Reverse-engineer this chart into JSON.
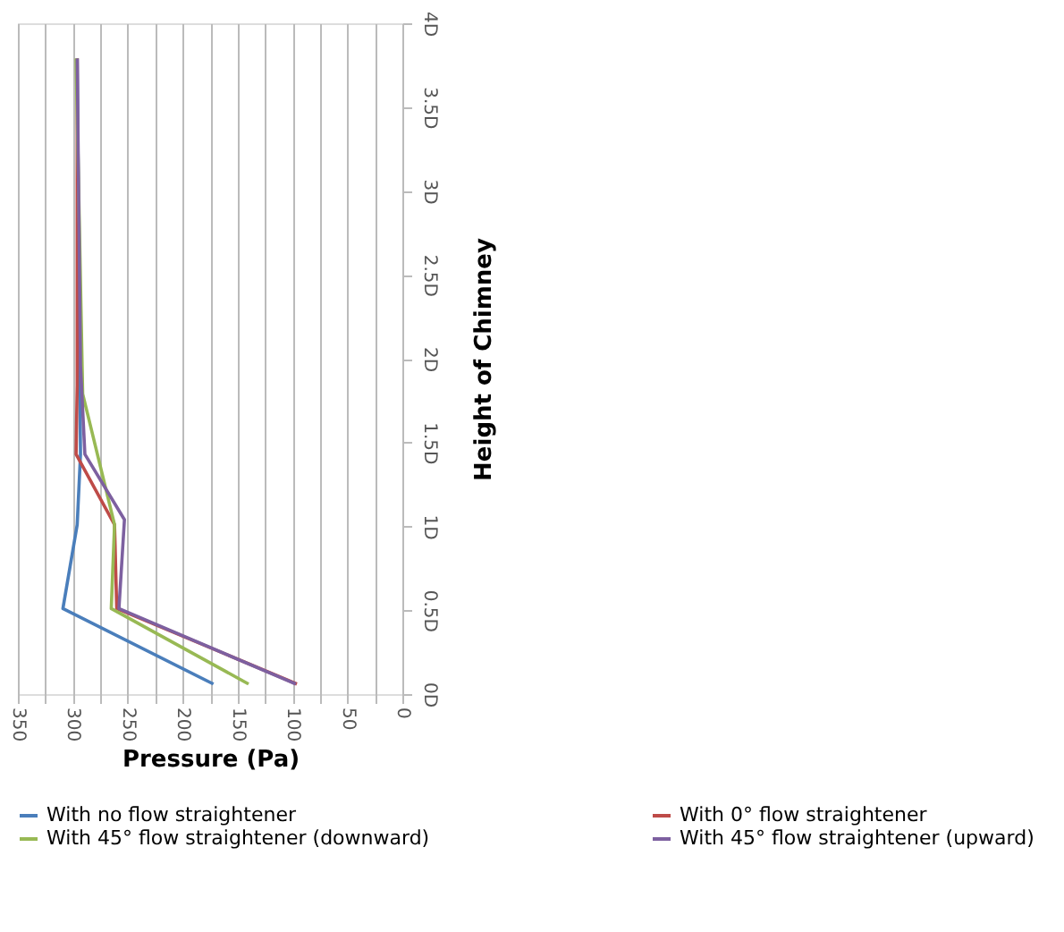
{
  "chart_data": {
    "type": "line",
    "xlabel": "Pressure (Pa)",
    "ylabel": "Height of Chimney",
    "xlim": [
      350,
      0
    ],
    "xticks": [
      350,
      {
        "value": 325,
        "label": null
      },
      300,
      {
        "value": 275,
        "label": null
      },
      250,
      {
        "value": 225,
        "label": null
      },
      200,
      {
        "value": 175,
        "label": null
      },
      150,
      {
        "value": 125,
        "label": null
      },
      100,
      {
        "value": 75,
        "label": null
      },
      50,
      {
        "value": 25,
        "label": null
      },
      0
    ],
    "ylim": [
      0,
      4
    ],
    "yticks": [
      {
        "value": 0,
        "label": "0D"
      },
      {
        "value": 0.5,
        "label": "0.5D"
      },
      {
        "value": 1,
        "label": "1D"
      },
      {
        "value": 1.5,
        "label": "1.5D"
      },
      {
        "value": 2,
        "label": "2D"
      },
      {
        "value": 2.5,
        "label": "2.5D"
      },
      {
        "value": 3,
        "label": "3D"
      },
      {
        "value": 3.5,
        "label": "3.5D"
      },
      {
        "value": 4,
        "label": "4D"
      }
    ],
    "grid": "x",
    "legend": "bottom",
    "marker": "none",
    "series": [
      {
        "name": "With no  flow straightener",
        "color": "#4a7ebb",
        "x": [
          172,
          309,
          296,
          293,
          296
        ],
        "values": [
          0.06,
          0.51,
          1.01,
          1.43,
          3.79
        ]
      },
      {
        "name": "With 0° flow straightener",
        "color": "#be4b48",
        "x": [
          96,
          260,
          262,
          297,
          296,
          296
        ],
        "values": [
          0.06,
          0.51,
          1.01,
          1.43,
          1.84,
          3.79
        ]
      },
      {
        "name": "With 45° flow straightener (downward)",
        "color": "#98b954",
        "x": [
          140,
          265,
          262,
          291,
          297
        ],
        "values": [
          0.06,
          0.51,
          1.01,
          1.79,
          3.79
        ]
      },
      {
        "name": "With 45° flow straightener (upward)",
        "color": "#7d60a0",
        "x": [
          97,
          258,
          253,
          289,
          293,
          296
        ],
        "values": [
          0.06,
          0.51,
          1.04,
          1.43,
          1.96,
          3.79
        ]
      }
    ]
  }
}
